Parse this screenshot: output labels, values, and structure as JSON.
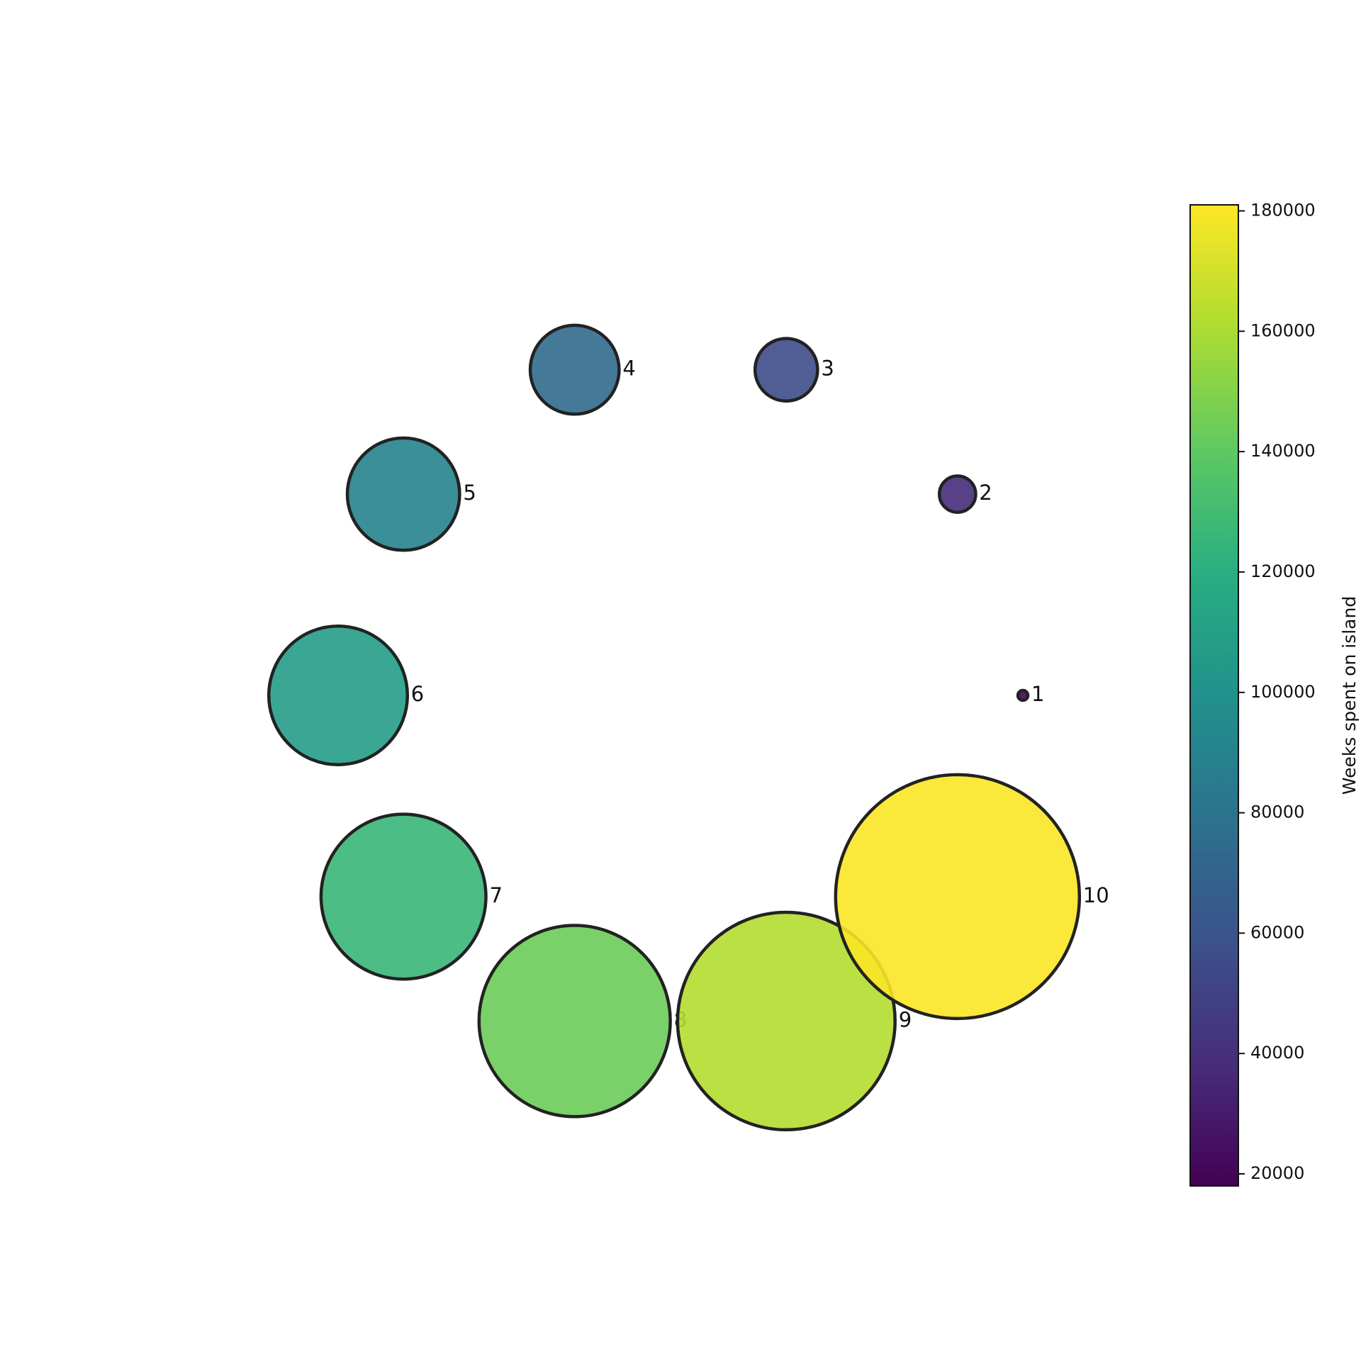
{
  "chart_data": {
    "type": "scatter",
    "subtype": "bubble",
    "title": "",
    "layout": "points arranged on a circle, bubble size and color proportional to value",
    "axes_visible": false,
    "grid": false,
    "points": [
      {
        "label": "1",
        "value": 20000
      },
      {
        "label": "2",
        "value": 38000
      },
      {
        "label": "3",
        "value": 56000
      },
      {
        "label": "4",
        "value": 74000
      },
      {
        "label": "5",
        "value": 90000
      },
      {
        "label": "6",
        "value": 108000
      },
      {
        "label": "7",
        "value": 126000
      },
      {
        "label": "8",
        "value": 144000
      },
      {
        "label": "9",
        "value": 162000
      },
      {
        "label": "10",
        "value": 180000
      }
    ],
    "colorbar": {
      "label": "Weeks spent on island",
      "colormap": "viridis",
      "range": [
        18000,
        181000
      ],
      "ticks": [
        20000,
        40000,
        60000,
        80000,
        100000,
        120000,
        140000,
        160000,
        180000
      ],
      "tick_labels": [
        "20000",
        "40000",
        "60000",
        "80000",
        "100000",
        "120000",
        "140000",
        "160000",
        "180000"
      ],
      "placement": "right"
    }
  }
}
